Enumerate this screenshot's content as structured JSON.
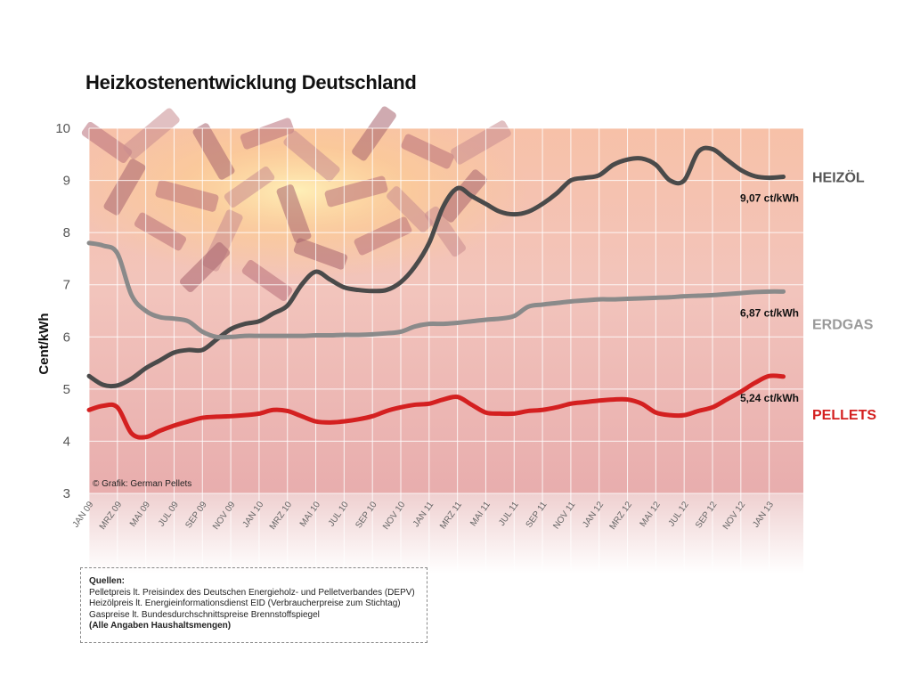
{
  "title": "Heizkostenentwicklung Deutschland",
  "credit": "© Grafik: German Pellets",
  "sources": {
    "heading": "Quellen:",
    "lines": [
      "Pelletpreis lt. Preisindex des Deutschen Energieholz- und Pelletverbandes (DEPV)",
      "Heizölpreis lt. Energieinformationsdienst EID (Verbraucherpreise zum Stichtag)",
      "Gaspreise lt. Bundesdurchschnittspreise Brennstoffspiegel"
    ],
    "note": "(Alle Angaben Haushaltsmengen)"
  },
  "colors": {
    "heizoel": "#4a4a4a",
    "erdgas": "#8a8a8a",
    "pellets": "#d42020",
    "heizoel_label": "#555555",
    "erdgas_label": "#9a9a9a",
    "pellets_label": "#d42020"
  },
  "chart_data": {
    "type": "line",
    "title": "Heizkostenentwicklung Deutschland",
    "ylabel": "Cent/kWh",
    "xlabel": "",
    "ylim": [
      3,
      10
    ],
    "yticks": [
      3,
      4,
      5,
      6,
      7,
      8,
      9,
      10
    ],
    "grid": true,
    "x_tick_labels": [
      "JAN 09",
      "MRZ 09",
      "MAI 09",
      "JUL 09",
      "SEP 09",
      "NOV 09",
      "JAN 10",
      "MRZ 10",
      "MAI 10",
      "JUL 10",
      "SEP 10",
      "NOV 10",
      "JAN 11",
      "MRZ 11",
      "MAI 11",
      "JUL 11",
      "SEP 11",
      "NOV 11",
      "JAN 12",
      "MRZ 12",
      "MAI 12",
      "JUL 12",
      "SEP 12",
      "NOV 12",
      "JAN 13"
    ],
    "x": [
      "JAN 09",
      "FEB 09",
      "MRZ 09",
      "APR 09",
      "MAI 09",
      "JUN 09",
      "JUL 09",
      "AUG 09",
      "SEP 09",
      "OKT 09",
      "NOV 09",
      "DEZ 09",
      "JAN 10",
      "FEB 10",
      "MRZ 10",
      "APR 10",
      "MAI 10",
      "JUN 10",
      "JUL 10",
      "AUG 10",
      "SEP 10",
      "OKT 10",
      "NOV 10",
      "DEZ 10",
      "JAN 11",
      "FEB 11",
      "MRZ 11",
      "APR 11",
      "MAI 11",
      "JUN 11",
      "JUL 11",
      "AUG 11",
      "SEP 11",
      "OKT 11",
      "NOV 11",
      "DEZ 11",
      "JAN 12",
      "FEB 12",
      "MRZ 12",
      "APR 12",
      "MAI 12",
      "JUN 12",
      "JUL 12",
      "AUG 12",
      "SEP 12",
      "OKT 12",
      "NOV 12",
      "DEZ 12",
      "JAN 13",
      "FEB 13"
    ],
    "series": [
      {
        "name": "HEIZÖL",
        "end_label": "9,07 ct/kWh",
        "values": [
          5.25,
          5.08,
          5.07,
          5.2,
          5.4,
          5.55,
          5.7,
          5.75,
          5.75,
          5.95,
          6.15,
          6.25,
          6.3,
          6.45,
          6.6,
          7.0,
          7.25,
          7.1,
          6.95,
          6.9,
          6.88,
          6.9,
          7.05,
          7.35,
          7.8,
          8.5,
          8.85,
          8.7,
          8.55,
          8.4,
          8.35,
          8.4,
          8.55,
          8.75,
          9.0,
          9.05,
          9.1,
          9.3,
          9.4,
          9.42,
          9.3,
          9.0,
          9.0,
          9.55,
          9.6,
          9.4,
          9.2,
          9.08,
          9.05,
          9.07
        ]
      },
      {
        "name": "ERDGAS",
        "end_label": "6,87 ct/kWh",
        "values": [
          7.8,
          7.75,
          7.6,
          6.8,
          6.5,
          6.38,
          6.35,
          6.3,
          6.1,
          6.0,
          6.0,
          6.02,
          6.02,
          6.02,
          6.02,
          6.02,
          6.03,
          6.03,
          6.04,
          6.04,
          6.05,
          6.07,
          6.1,
          6.2,
          6.25,
          6.25,
          6.27,
          6.3,
          6.33,
          6.35,
          6.4,
          6.58,
          6.62,
          6.65,
          6.68,
          6.7,
          6.72,
          6.72,
          6.73,
          6.74,
          6.75,
          6.76,
          6.78,
          6.79,
          6.8,
          6.82,
          6.84,
          6.86,
          6.87,
          6.87
        ]
      },
      {
        "name": "PELLETS",
        "end_label": "5,24 ct/kWh",
        "values": [
          4.6,
          4.68,
          4.65,
          4.15,
          4.08,
          4.2,
          4.3,
          4.38,
          4.45,
          4.47,
          4.48,
          4.5,
          4.53,
          4.6,
          4.58,
          4.48,
          4.38,
          4.36,
          4.38,
          4.42,
          4.48,
          4.58,
          4.65,
          4.7,
          4.72,
          4.8,
          4.85,
          4.7,
          4.55,
          4.53,
          4.53,
          4.58,
          4.6,
          4.65,
          4.72,
          4.75,
          4.78,
          4.8,
          4.8,
          4.72,
          4.55,
          4.5,
          4.5,
          4.58,
          4.65,
          4.8,
          4.95,
          5.12,
          5.25,
          5.24
        ]
      }
    ]
  }
}
